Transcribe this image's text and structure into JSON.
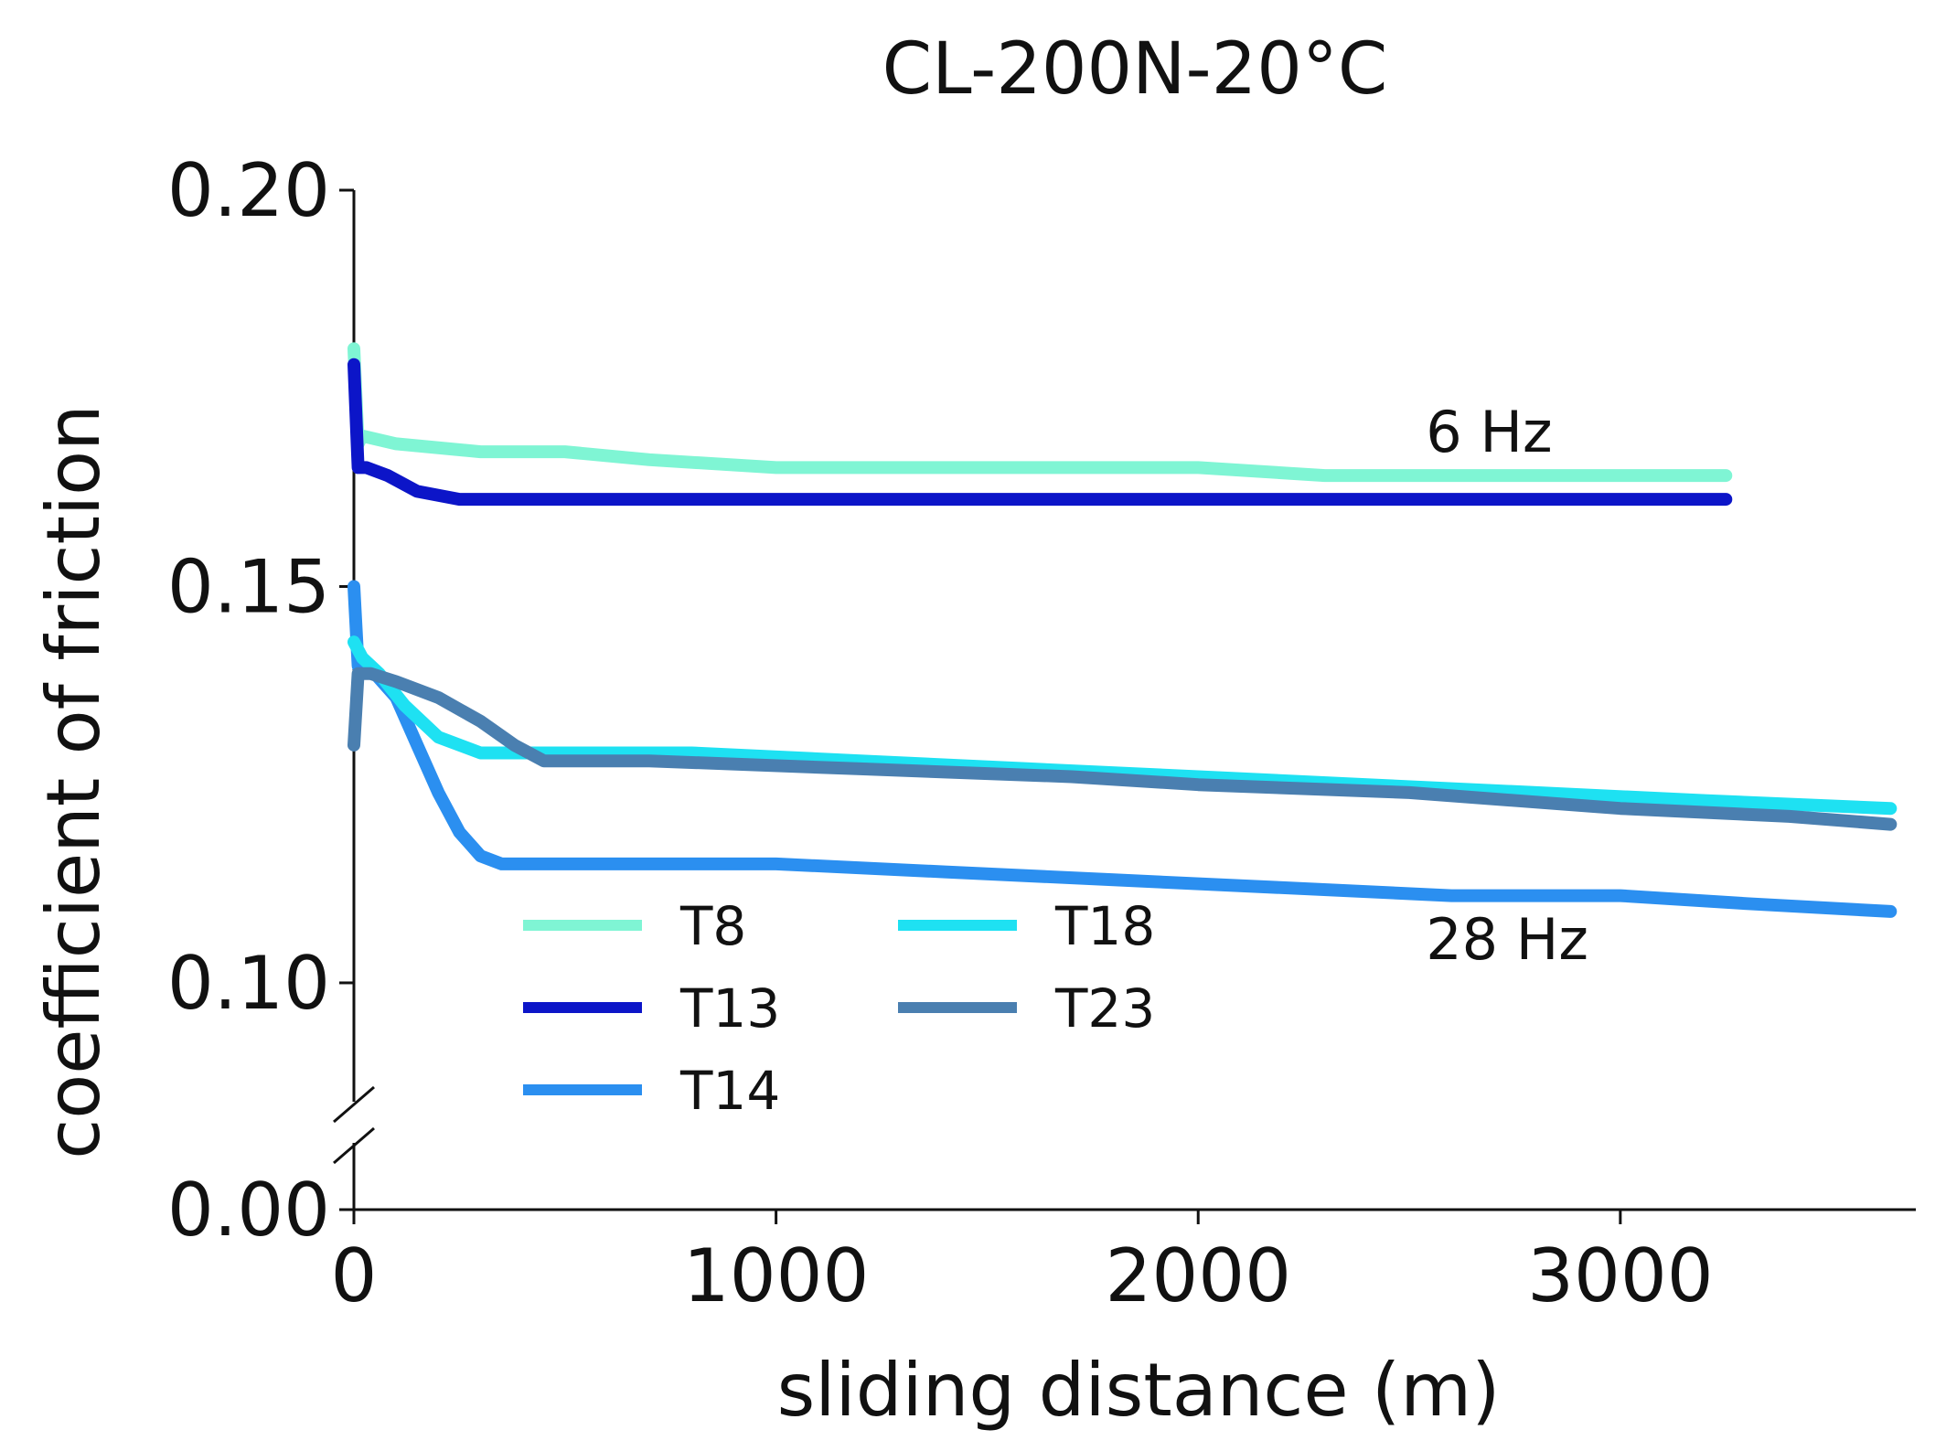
{
  "chart_data": {
    "type": "line",
    "title": "CL-200N-20°C",
    "xlabel": "sliding distance (m)",
    "ylabel": "coefficient of friction",
    "xlim": [
      0,
      3700
    ],
    "ylim_upper": [
      0.085,
      0.2
    ],
    "ylim_lower": [
      0.0,
      0.02
    ],
    "axis_break": true,
    "x_ticks": [
      0,
      1000,
      2000,
      3000
    ],
    "x_tick_labels": [
      "0",
      "1000",
      "2000",
      "3000"
    ],
    "y_ticks": [
      0.0,
      0.1,
      0.15,
      0.2
    ],
    "y_tick_labels": [
      "0.00",
      "0.10",
      "0.15",
      "0.20"
    ],
    "annotations": [
      {
        "text": "6 Hz",
        "x": 2600,
        "y": 0.167
      },
      {
        "text": "28 Hz",
        "x": 2600,
        "y": 0.103
      }
    ],
    "legend_location": "lower-left",
    "series": [
      {
        "name": "T8",
        "color": "#7ff5d4",
        "x": [
          0,
          10,
          20,
          100,
          300,
          500,
          700,
          1000,
          1500,
          2000,
          2300,
          2600,
          3000,
          3250
        ],
        "y": [
          0.18,
          0.168,
          0.169,
          0.168,
          0.167,
          0.167,
          0.166,
          0.165,
          0.165,
          0.165,
          0.164,
          0.164,
          0.164,
          0.164
        ]
      },
      {
        "name": "T13",
        "color": "#0c15c8",
        "x": [
          0,
          10,
          30,
          80,
          150,
          250,
          500,
          1000,
          1500,
          2000,
          2500,
          3000,
          3250
        ],
        "y": [
          0.178,
          0.165,
          0.165,
          0.164,
          0.162,
          0.161,
          0.161,
          0.161,
          0.161,
          0.161,
          0.161,
          0.161,
          0.161
        ]
      },
      {
        "name": "T14",
        "color": "#2b8ff0",
        "x": [
          0,
          10,
          50,
          100,
          150,
          200,
          250,
          300,
          350,
          400,
          600,
          1000,
          1400,
          1800,
          2200,
          2600,
          3000,
          3300,
          3640
        ],
        "y": [
          0.15,
          0.14,
          0.139,
          0.136,
          0.13,
          0.124,
          0.119,
          0.116,
          0.115,
          0.115,
          0.115,
          0.115,
          0.114,
          0.113,
          0.112,
          0.111,
          0.111,
          0.11,
          0.109
        ]
      },
      {
        "name": "T18",
        "color": "#1ee1f2",
        "x": [
          0,
          20,
          60,
          120,
          200,
          300,
          400,
          500,
          800,
          1200,
          1600,
          2000,
          2400,
          2800,
          3200,
          3640
        ],
        "y": [
          0.143,
          0.141,
          0.139,
          0.135,
          0.131,
          0.129,
          0.129,
          0.129,
          0.129,
          0.128,
          0.127,
          0.126,
          0.125,
          0.124,
          0.123,
          0.122
        ]
      },
      {
        "name": "T23",
        "color": "#4a7fb0",
        "x": [
          0,
          10,
          40,
          100,
          200,
          300,
          380,
          450,
          700,
          1200,
          1700,
          2000,
          2500,
          3000,
          3400,
          3640
        ],
        "y": [
          0.13,
          0.139,
          0.139,
          0.138,
          0.136,
          0.133,
          0.13,
          0.128,
          0.128,
          0.127,
          0.126,
          0.125,
          0.124,
          0.122,
          0.121,
          0.12
        ]
      }
    ]
  }
}
